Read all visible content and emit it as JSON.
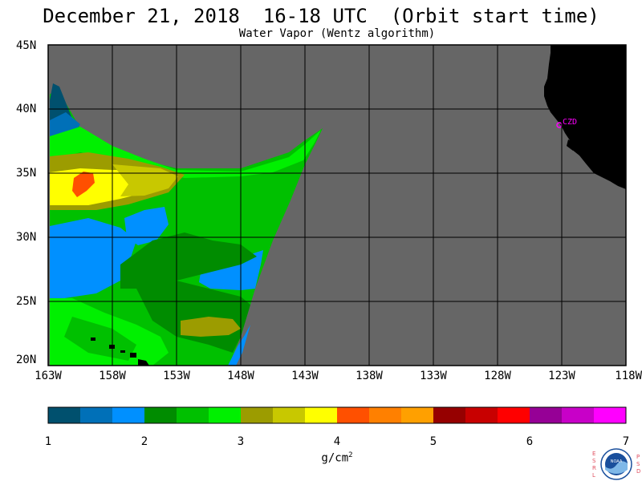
{
  "header": {
    "title": "December 21, 2018  16-18 UTC  (Orbit start time)",
    "subtitle": "Water Vapor (Wentz algorithm)"
  },
  "map": {
    "lat_labels": [
      "45N",
      "40N",
      "35N",
      "30N",
      "25N",
      "20N"
    ],
    "lon_labels": [
      "163W",
      "158W",
      "153W",
      "148W",
      "143W",
      "138W",
      "133W",
      "128W",
      "123W",
      "118W"
    ],
    "station_label": "CZD",
    "colors": {
      "land": "#000000",
      "no_data": "#666666",
      "station": "#ff00ff",
      "grid": "#000000"
    }
  },
  "colorbar": {
    "tick_labels": [
      "1",
      "2",
      "3",
      "4",
      "5",
      "6",
      "7"
    ],
    "units_base": "g/cm",
    "units_exp": "2",
    "colors": [
      "#00506e",
      "#0070b8",
      "#0090ff",
      "#008c00",
      "#00c000",
      "#00f000",
      "#9c9c00",
      "#c8c800",
      "#ffff00",
      "#ff5000",
      "#ff8000",
      "#ffa000",
      "#960000",
      "#c80000",
      "#ff0000",
      "#960096",
      "#c800c8",
      "#ff00ff"
    ]
  },
  "logo": {
    "left_text": "ESRL",
    "right_text": "PSD",
    "center_text": "NOAA"
  }
}
